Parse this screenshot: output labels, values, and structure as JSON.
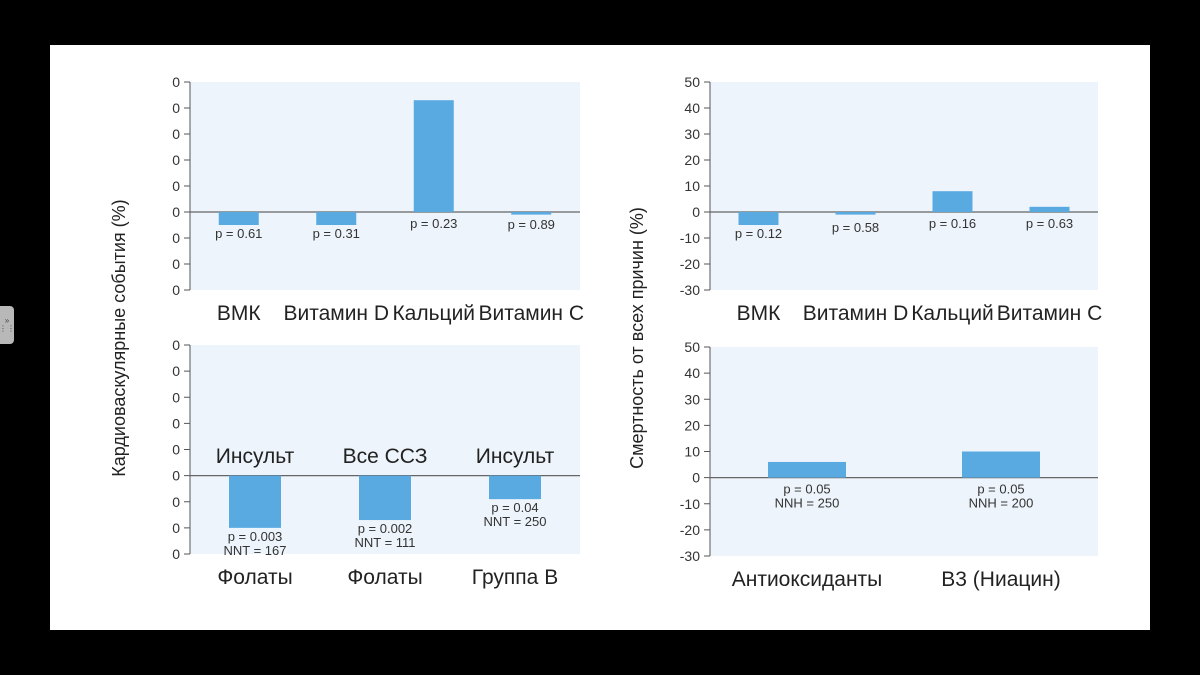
{
  "chart_data": [
    {
      "type": "bar",
      "panel": "top-left",
      "categories": [
        "ВМК",
        "Витамин D",
        "Кальций",
        "Витамин С"
      ],
      "values": [
        -5,
        -5,
        43,
        -1
      ],
      "annotations": [
        "p = 0.61",
        "p = 0.31",
        "p = 0.23",
        "p = 0.89"
      ],
      "yticks": [
        "0",
        "0",
        "0",
        "0",
        "0",
        "0",
        "0",
        "0",
        "0"
      ],
      "ylim": [
        -30,
        50
      ]
    },
    {
      "type": "bar",
      "panel": "bottom-left",
      "categories": [
        "Фолаты",
        "Фолаты",
        "Группа В"
      ],
      "top_labels": [
        "Инсульт",
        "Все ССЗ",
        "Инсульт"
      ],
      "values": [
        -20,
        -17,
        -9
      ],
      "annotations": [
        "p = 0.003\nNNT = 167",
        "p = 0.002\nNNT = 111",
        "p = 0.04\nNNT = 250"
      ],
      "yticks": [
        "0",
        "0",
        "0",
        "0",
        "0",
        "0",
        "0",
        "0",
        "0"
      ],
      "ylim": [
        -30,
        50
      ]
    },
    {
      "type": "bar",
      "panel": "top-right",
      "categories": [
        "ВМК",
        "Витамин D",
        "Кальций",
        "Витамин С"
      ],
      "values": [
        -5,
        -1,
        8,
        2
      ],
      "annotations": [
        "p = 0.12",
        "p = 0.58",
        "p = 0.16",
        "p = 0.63"
      ],
      "yticks": [
        "50",
        "40",
        "30",
        "20",
        "10",
        "0",
        "-10",
        "-20",
        "-30"
      ],
      "ylim": [
        -30,
        50
      ]
    },
    {
      "type": "bar",
      "panel": "bottom-right",
      "categories": [
        "Антиоксиданты",
        "В3 (Ниацин)"
      ],
      "values": [
        6,
        10
      ],
      "annotations": [
        "p = 0.05\nNNH = 250",
        "p = 0.05\nNNH = 200"
      ],
      "yticks": [
        "50",
        "40",
        "30",
        "20",
        "10",
        "0",
        "-10",
        "-20",
        "-30"
      ],
      "ylim": [
        -30,
        50
      ]
    }
  ],
  "labels": {
    "left_ylabel": "Кардиоваскулярные события (%)",
    "right_ylabel": "Смертность от всех причин (%)"
  },
  "colors": {
    "bar": "#5aaae2",
    "plot_bg": "#edf4fb",
    "axis": "#555555"
  },
  "ui": {
    "handle_icon": "drag-handle-icon",
    "handle_glyph": "»"
  }
}
